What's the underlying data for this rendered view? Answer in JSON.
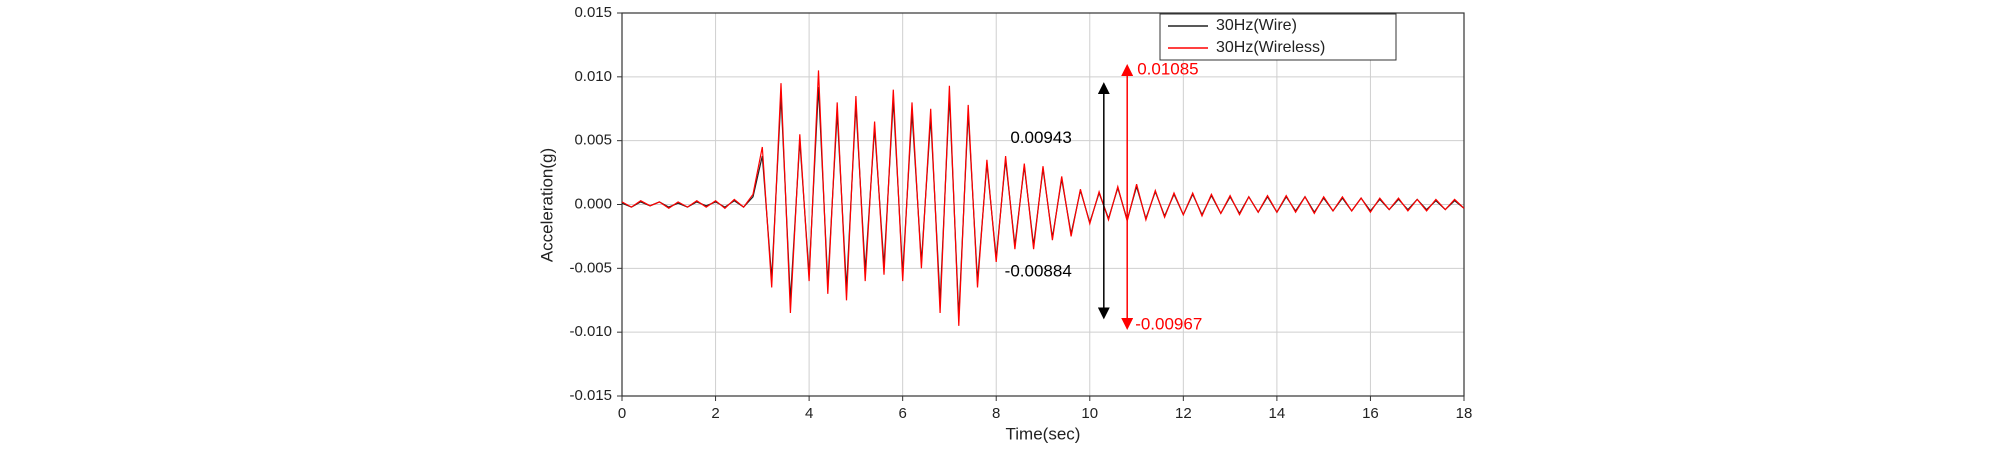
{
  "chart_data": {
    "type": "line",
    "xlabel": "Time(sec)",
    "ylabel": "Acceleration(g)",
    "x": [
      0,
      0.2,
      0.4,
      0.6,
      0.8,
      1,
      1.2,
      1.4,
      1.6,
      1.8,
      2,
      2.2,
      2.4,
      2.6,
      2.8,
      3,
      3.2,
      3.4,
      3.6,
      3.8,
      4,
      4.2,
      4.4,
      4.6,
      4.8,
      5,
      5.2,
      5.4,
      5.6,
      5.8,
      6,
      6.2,
      6.4,
      6.6,
      6.8,
      7,
      7.2,
      7.4,
      7.6,
      7.8,
      8,
      8.2,
      8.4,
      8.6,
      8.8,
      9,
      9.2,
      9.4,
      9.6,
      9.8,
      10,
      10.2,
      10.4,
      10.6,
      10.8,
      11,
      11.2,
      11.4,
      11.6,
      11.8,
      12,
      12.2,
      12.4,
      12.6,
      12.8,
      13,
      13.2,
      13.4,
      13.6,
      13.8,
      14,
      14.2,
      14.4,
      14.6,
      14.8,
      15,
      15.2,
      15.4,
      15.6,
      15.8,
      16,
      16.2,
      16.4,
      16.6,
      16.8,
      17,
      17.2,
      17.4,
      17.6,
      17.8,
      18
    ],
    "series": [
      {
        "name": "30Hz(Wire)",
        "color": "#222222",
        "values": [
          0.0001,
          -0.0002,
          0.0002,
          -0.0001,
          0.0002,
          -0.0002,
          0.0001,
          -0.0002,
          0.0002,
          -0.0001,
          0.0002,
          -0.0002,
          0.0003,
          -0.0002,
          0.0006,
          0.0038,
          -0.0058,
          0.0085,
          -0.0075,
          0.005,
          -0.0055,
          0.0092,
          -0.0062,
          0.0072,
          -0.0066,
          0.0078,
          -0.0052,
          0.006,
          -0.0048,
          0.0082,
          -0.0054,
          0.0072,
          -0.0045,
          0.0068,
          -0.0076,
          0.0085,
          -0.0088,
          0.0072,
          -0.006,
          0.0032,
          -0.0042,
          0.0035,
          -0.0032,
          0.003,
          -0.0032,
          0.0028,
          -0.0026,
          0.002,
          -0.0023,
          0.0011,
          -0.0014,
          0.0009,
          -0.0011,
          0.0013,
          -0.0012,
          0.0014,
          -0.0011,
          0.001,
          -0.0009,
          0.0008,
          -0.0008,
          0.0008,
          -0.0008,
          0.0007,
          -0.0007,
          0.0006,
          -0.0007,
          0.0006,
          -0.0006,
          0.0006,
          -0.0006,
          0.0006,
          -0.0005,
          0.0006,
          -0.0006,
          0.0005,
          -0.0005,
          0.0005,
          -0.0005,
          0.0005,
          -0.0005,
          0.0004,
          -0.0004,
          0.0004,
          -0.0004,
          0.0004,
          -0.0004,
          0.0003,
          -0.0004,
          0.0003,
          -0.0003
        ]
      },
      {
        "name": "30Hz(Wireless)",
        "color": "#ff0000",
        "values": [
          0.0002,
          -0.0002,
          0.0003,
          -0.0001,
          0.0002,
          -0.0003,
          0.0002,
          -0.0002,
          0.0003,
          -0.0002,
          0.0003,
          -0.0003,
          0.0004,
          -0.0002,
          0.0008,
          0.0045,
          -0.0065,
          0.0095,
          -0.0085,
          0.0055,
          -0.006,
          0.0105,
          -0.007,
          0.008,
          -0.0075,
          0.0085,
          -0.006,
          0.0065,
          -0.0055,
          0.009,
          -0.006,
          0.008,
          -0.005,
          0.0075,
          -0.0085,
          0.0093,
          -0.0095,
          0.0078,
          -0.0065,
          0.0035,
          -0.0045,
          0.0038,
          -0.0035,
          0.0032,
          -0.0035,
          0.003,
          -0.0028,
          0.0022,
          -0.0025,
          0.0012,
          -0.0015,
          0.001,
          -0.0012,
          0.0014,
          -0.0013,
          0.0016,
          -0.0012,
          0.0011,
          -0.001,
          0.0009,
          -0.0008,
          0.0009,
          -0.0009,
          0.0008,
          -0.0007,
          0.0007,
          -0.0008,
          0.0006,
          -0.0006,
          0.0007,
          -0.0006,
          0.0007,
          -0.0006,
          0.0006,
          -0.0007,
          0.0006,
          -0.0005,
          0.0006,
          -0.0005,
          0.0005,
          -0.0006,
          0.0005,
          -0.0004,
          0.0005,
          -0.0005,
          0.0004,
          -0.0005,
          0.0004,
          -0.0004,
          0.0004,
          -0.0003
        ]
      }
    ],
    "xlim": [
      0,
      18
    ],
    "xticks": [
      0,
      2,
      4,
      6,
      8,
      10,
      12,
      14,
      16,
      18
    ],
    "ylim": [
      -0.015,
      0.015
    ],
    "yticks": [
      -0.015,
      {
        "value": -0.01,
        "label": "-0.010"
      },
      -0.005,
      {
        "value": 0,
        "label": "0.000"
      },
      0.005,
      {
        "value": 0.01,
        "label": "0.010"
      },
      0.015
    ],
    "grid": true,
    "legend": "upper right",
    "arrows": [
      {
        "x": 10.3,
        "color": "#000000",
        "top": 0.00943,
        "bottom": -0.00884
      },
      {
        "x": 10.8,
        "color": "#ff0000",
        "top": 0.01085,
        "bottom": -0.00967
      }
    ]
  }
}
